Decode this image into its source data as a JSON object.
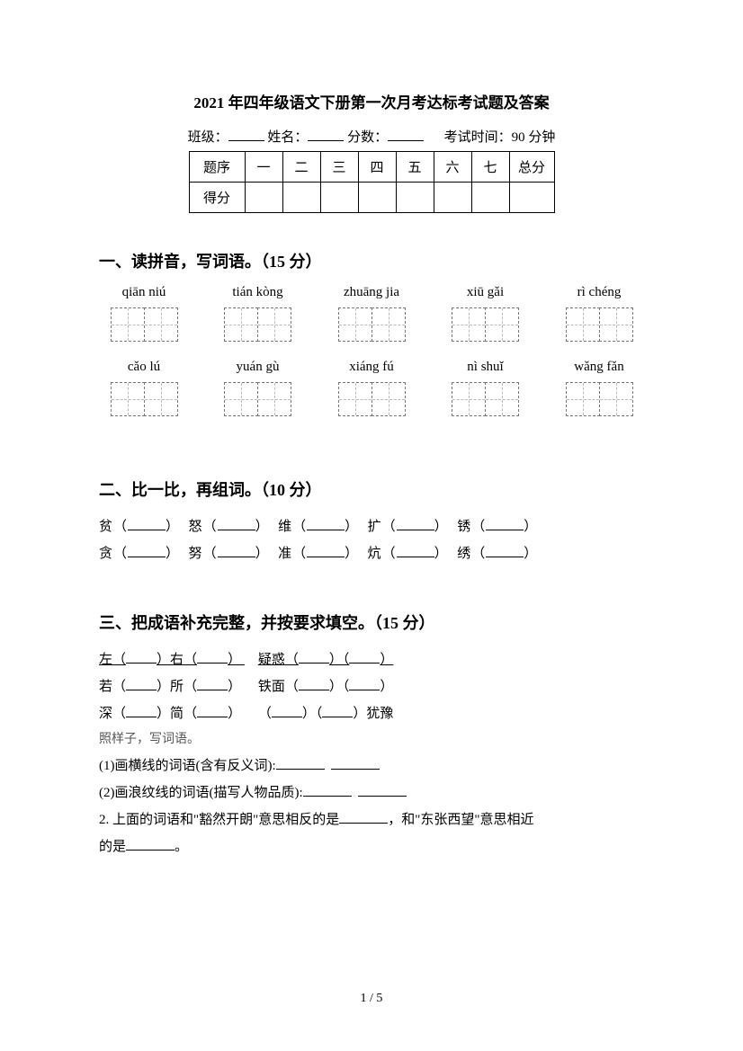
{
  "title": "2021 年四年级语文下册第一次月考达标考试题及答案",
  "info": {
    "class_label": "班级：",
    "name_label": "姓名：",
    "score_label": "分数：",
    "exam_time": "考试时间：90 分钟"
  },
  "score_table": {
    "row1_label": "题序",
    "nums": [
      "一",
      "二",
      "三",
      "四",
      "五",
      "六",
      "七"
    ],
    "total_label": "总分",
    "row2_label": "得分"
  },
  "section1": {
    "heading": "一、读拼音，写词语。（15 分）",
    "row1": [
      "qiān niú",
      "tián kòng",
      "zhuāng jia",
      "xiū gǎi",
      "rì chéng"
    ],
    "row2": [
      "cǎo lú",
      "yuán gù",
      "xiáng fú",
      "nì shuǐ",
      "wǎng fǎn"
    ]
  },
  "section2": {
    "heading": "二、比一比，再组词。（10 分）",
    "line1": [
      "贫",
      "怒",
      "维",
      "扩",
      "锈"
    ],
    "line2": [
      "贪",
      "努",
      "准",
      "炕",
      "绣"
    ]
  },
  "section3": {
    "heading": "三、把成语补充完整，并按要求填空。（15 分）",
    "line1_a": "左",
    "line1_b": "右",
    "line1_c": "疑惑",
    "line2_a": "若",
    "line2_b": "所",
    "line2_c": "铁面",
    "line3_a": "深",
    "line3_b": "简",
    "line3_c": "犹豫",
    "note": "照样子，写词语。",
    "sub1": "(1)画横线的词语(含有反义词):",
    "sub2": "(2)画浪纹线的词语(描写人物品质):",
    "sub3_a": "2. 上面的词语和\"豁然开朗\"意思相反的是",
    "sub3_b": "，和\"东张西望\"意思相近",
    "sub3_c": "的是",
    "sub3_d": "。"
  },
  "footer": "1  /  5"
}
